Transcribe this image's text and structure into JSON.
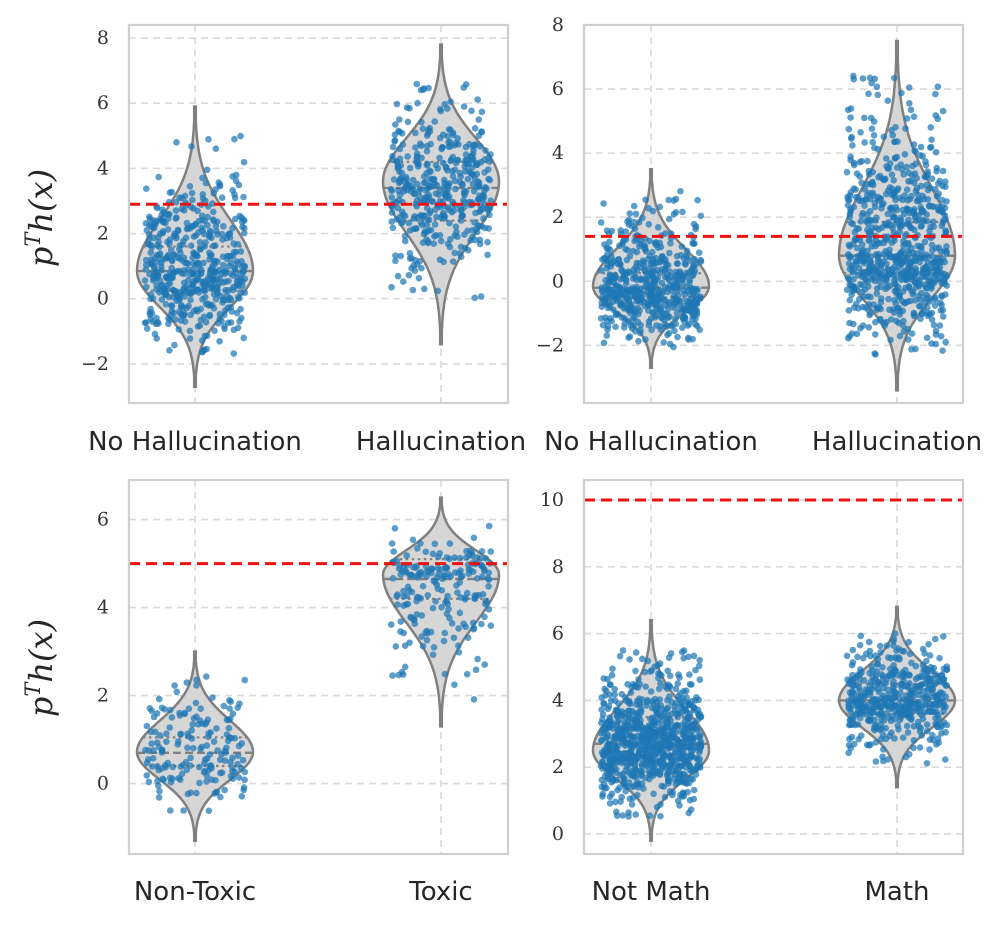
{
  "chart_data": [
    {
      "type": "violin",
      "ylabel": "p^T h(x)",
      "yticks": [
        -2,
        0,
        2,
        4,
        6,
        8
      ],
      "ylim": [
        -3.2,
        8.4
      ],
      "threshold": 2.9,
      "categories": [
        {
          "label": "No Hallucination",
          "median": 0.85,
          "q1": 0.25,
          "q3": 1.6,
          "min": -2.7,
          "max": 5.9,
          "peak": 0.85,
          "n": 520,
          "point_min": -1.7,
          "point_max": 5.0
        },
        {
          "label": "Hallucination",
          "median": 3.4,
          "q1": 2.4,
          "q3": 4.2,
          "min": -1.4,
          "max": 7.8,
          "peak": 3.6,
          "n": 420,
          "point_min": 0.0,
          "point_max": 6.6
        }
      ]
    },
    {
      "type": "violin",
      "ylabel": "",
      "yticks": [
        -2,
        0,
        2,
        4,
        6,
        8
      ],
      "ylim": [
        -3.8,
        8.0
      ],
      "threshold": 1.4,
      "categories": [
        {
          "label": "No Hallucination",
          "median": -0.2,
          "q1": -0.5,
          "q3": 0.25,
          "min": -2.7,
          "max": 3.5,
          "peak": -0.15,
          "n": 560,
          "point_min": -2.1,
          "point_max": 3.0
        },
        {
          "label": "Hallucination",
          "median": 0.8,
          "q1": 0.25,
          "q3": 1.85,
          "min": -3.4,
          "max": 7.5,
          "peak": 0.8,
          "n": 760,
          "point_min": -2.3,
          "point_max": 6.5
        }
      ]
    },
    {
      "type": "violin",
      "ylabel": "p^T h(x)",
      "yticks": [
        0,
        2,
        4,
        6
      ],
      "ylim": [
        -1.6,
        6.9
      ],
      "threshold": 5.0,
      "categories": [
        {
          "label": "Non-Toxic",
          "median": 0.7,
          "q1": 0.4,
          "q3": 1.05,
          "min": -1.3,
          "max": 3.0,
          "peak": 0.72,
          "n": 170,
          "point_min": -0.8,
          "point_max": 2.5
        },
        {
          "label": "Toxic",
          "median": 4.65,
          "q1": 4.2,
          "q3": 5.1,
          "min": 1.3,
          "max": 6.5,
          "peak": 4.75,
          "n": 200,
          "point_min": 1.85,
          "point_max": 5.9
        }
      ]
    },
    {
      "type": "violin",
      "ylabel": "",
      "yticks": [
        0,
        2,
        4,
        6,
        8,
        10
      ],
      "ylim": [
        -0.6,
        10.6
      ],
      "threshold": 10.0,
      "categories": [
        {
          "label": "Not Math",
          "median": 2.7,
          "q1": 2.1,
          "q3": 3.5,
          "min": -0.2,
          "max": 6.4,
          "peak": 2.5,
          "n": 820,
          "point_min": 0.5,
          "point_max": 5.5
        },
        {
          "label": "Math",
          "median": 4.0,
          "q1": 3.6,
          "q3": 4.5,
          "min": 1.4,
          "max": 6.8,
          "peak": 4.0,
          "n": 460,
          "point_min": 2.1,
          "point_max": 6.1
        }
      ]
    }
  ]
}
